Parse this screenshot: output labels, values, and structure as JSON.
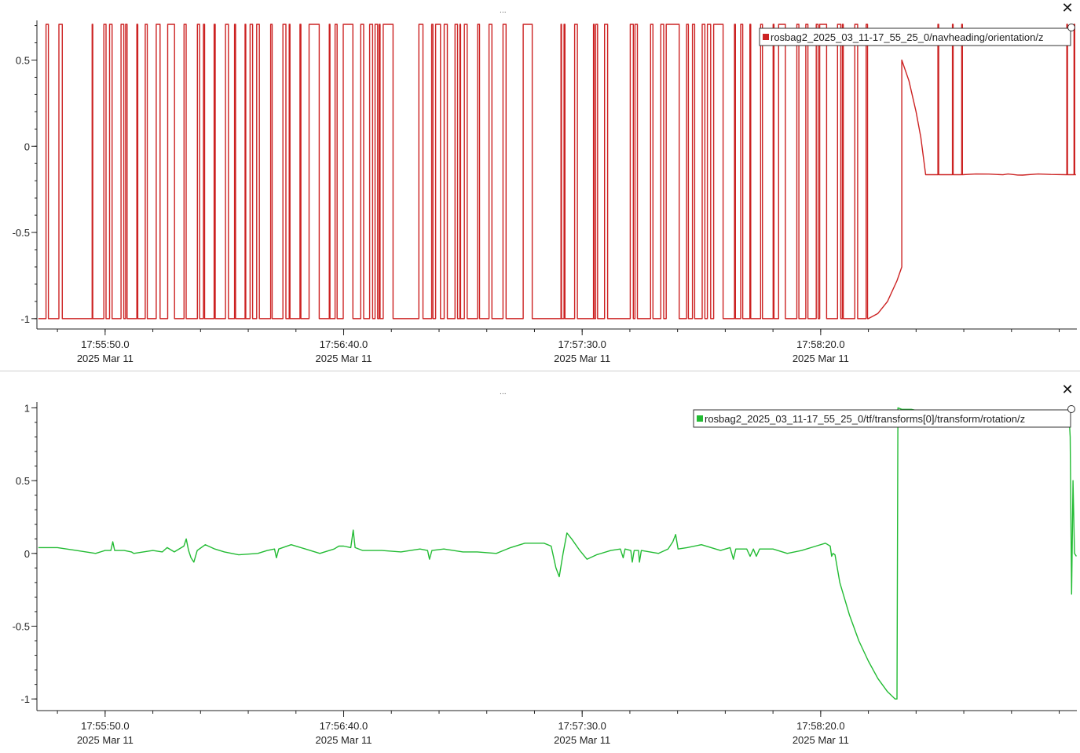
{
  "window": {
    "panel_menu_glyph": "...",
    "close_glyph": "✕",
    "close_icon": "close-icon"
  },
  "chart_data": [
    {
      "type": "line",
      "title": "",
      "xlabel": "",
      "ylabel": "",
      "x_ticks": [
        {
          "label": "17:55:50.0",
          "date": "2025 Mar 11",
          "t": 50
        },
        {
          "label": "17:56:40.0",
          "date": "2025 Mar 11",
          "t": 100
        },
        {
          "label": "17:57:30.0",
          "date": "2025 Mar 11",
          "t": 150
        },
        {
          "label": "17:58:20.0",
          "date": "2025 Mar 11",
          "t": 200
        }
      ],
      "xlim_seconds_after_17_55_00": [
        35.7,
        253.7
      ],
      "y_ticks": [
        0.5,
        0,
        -0.5,
        -1
      ],
      "ylim": [
        -1.06,
        0.73
      ],
      "grid": false,
      "legend_position": "top-right",
      "series": [
        {
          "name": "rosbag2_2025_03_11-17_55_25_0/navheading/orientation/z",
          "color": "#cc2222",
          "segments": [
            {
              "t_start": 36.0,
              "t_end": 210.0,
              "pattern": "square-switching",
              "high": 0.707,
              "low": -1.0
            },
            {
              "t_start": 210.0,
              "t_end": 217.0,
              "points": [
                [
                  210.0,
                  -1.0
                ],
                [
                  212.0,
                  -0.97
                ],
                [
                  214.0,
                  -0.9
                ],
                [
                  216.0,
                  -0.78
                ],
                [
                  217.0,
                  -0.7
                ]
              ]
            },
            {
              "t_start": 217.0,
              "t_end": 222.0,
              "points": [
                [
                  217.0,
                  0.5
                ],
                [
                  218.5,
                  0.38
                ],
                [
                  220.0,
                  0.2
                ],
                [
                  221.0,
                  0.05
                ]
              ]
            },
            {
              "t_start": 222.0,
              "t_end": 253.5,
              "pattern": "flat-with-spikes",
              "level": -0.165,
              "high": 0.707
            }
          ]
        }
      ]
    },
    {
      "type": "line",
      "title": "",
      "xlabel": "",
      "ylabel": "",
      "x_ticks": [
        {
          "label": "17:55:50.0",
          "date": "2025 Mar 11",
          "t": 50
        },
        {
          "label": "17:56:40.0",
          "date": "2025 Mar 11",
          "t": 100
        },
        {
          "label": "17:57:30.0",
          "date": "2025 Mar 11",
          "t": 150
        },
        {
          "label": "17:58:20.0",
          "date": "2025 Mar 11",
          "t": 200
        }
      ],
      "xlim_seconds_after_17_55_00": [
        35.7,
        253.7
      ],
      "y_ticks": [
        1,
        0.5,
        0,
        -0.5,
        -1
      ],
      "ylim": [
        -1.08,
        1.04
      ],
      "grid": false,
      "legend_position": "top-right",
      "series": [
        {
          "name": "rosbag2_2025_03_11-17_55_25_0/tf/transforms[0]/transform/rotation/z",
          "color": "#22bb33",
          "points": [
            [
              36.0,
              0.04
            ],
            [
              40.0,
              0.04
            ],
            [
              44.0,
              0.02
            ],
            [
              48.0,
              0.0
            ],
            [
              50.0,
              0.02
            ],
            [
              51.2,
              0.02
            ],
            [
              51.6,
              0.08
            ],
            [
              52.0,
              0.02
            ],
            [
              54.0,
              0.02
            ],
            [
              55.5,
              0.01
            ],
            [
              56.0,
              0.0
            ],
            [
              60.0,
              0.02
            ],
            [
              62.0,
              0.01
            ],
            [
              63.0,
              0.04
            ],
            [
              64.5,
              0.01
            ],
            [
              66.5,
              0.05
            ],
            [
              67.0,
              0.1
            ],
            [
              67.5,
              0.02
            ],
            [
              68.0,
              -0.03
            ],
            [
              68.6,
              -0.06
            ],
            [
              69.3,
              0.02
            ],
            [
              71.0,
              0.06
            ],
            [
              73.0,
              0.03
            ],
            [
              75.0,
              0.01
            ],
            [
              78.0,
              -0.01
            ],
            [
              82.0,
              0.0
            ],
            [
              84.0,
              0.02
            ],
            [
              85.5,
              0.03
            ],
            [
              85.9,
              -0.03
            ],
            [
              86.4,
              0.03
            ],
            [
              89.0,
              0.06
            ],
            [
              92.0,
              0.03
            ],
            [
              95.0,
              0.0
            ],
            [
              98.0,
              0.03
            ],
            [
              99.0,
              0.05
            ],
            [
              100.0,
              0.05
            ],
            [
              101.5,
              0.04
            ],
            [
              102.0,
              0.16
            ],
            [
              102.4,
              0.04
            ],
            [
              104.0,
              0.02
            ],
            [
              108.0,
              0.02
            ],
            [
              112.0,
              0.01
            ],
            [
              116.0,
              0.03
            ],
            [
              117.6,
              0.02
            ],
            [
              118.0,
              -0.04
            ],
            [
              118.5,
              0.02
            ],
            [
              121.0,
              0.03
            ],
            [
              125.0,
              0.01
            ],
            [
              128.0,
              0.01
            ],
            [
              132.0,
              0.0
            ],
            [
              135.0,
              0.04
            ],
            [
              138.0,
              0.07
            ],
            [
              142.0,
              0.07
            ],
            [
              143.5,
              0.05
            ],
            [
              144.5,
              -0.1
            ],
            [
              145.2,
              -0.16
            ],
            [
              146.0,
              0.0
            ],
            [
              146.8,
              0.14
            ],
            [
              147.8,
              0.1
            ],
            [
              149.5,
              0.02
            ],
            [
              151.0,
              -0.04
            ],
            [
              153.0,
              -0.01
            ],
            [
              156.0,
              0.02
            ],
            [
              158.0,
              0.03
            ],
            [
              158.6,
              -0.03
            ],
            [
              159.0,
              0.03
            ],
            [
              160.2,
              0.02
            ],
            [
              160.5,
              -0.06
            ],
            [
              160.9,
              0.02
            ],
            [
              161.8,
              0.02
            ],
            [
              162.0,
              -0.06
            ],
            [
              162.4,
              0.02
            ],
            [
              166.0,
              0.0
            ],
            [
              168.0,
              0.03
            ],
            [
              169.0,
              0.08
            ],
            [
              169.6,
              0.13
            ],
            [
              170.1,
              0.03
            ],
            [
              172.0,
              0.04
            ],
            [
              175.0,
              0.06
            ],
            [
              179.0,
              0.02
            ],
            [
              181.0,
              0.04
            ],
            [
              181.7,
              -0.04
            ],
            [
              182.2,
              0.03
            ],
            [
              184.5,
              0.03
            ],
            [
              185.2,
              -0.02
            ],
            [
              185.9,
              0.03
            ],
            [
              186.5,
              -0.02
            ],
            [
              187.2,
              0.03
            ],
            [
              190.0,
              0.03
            ],
            [
              193.0,
              0.0
            ],
            [
              196.0,
              0.02
            ],
            [
              199.0,
              0.05
            ],
            [
              201.0,
              0.07
            ],
            [
              202.0,
              0.05
            ],
            [
              202.3,
              -0.02
            ],
            [
              202.6,
              0.0
            ],
            [
              203.0,
              -0.01
            ],
            [
              204.0,
              -0.2
            ],
            [
              206.0,
              -0.42
            ],
            [
              208.0,
              -0.6
            ],
            [
              210.0,
              -0.74
            ],
            [
              212.0,
              -0.86
            ],
            [
              214.0,
              -0.95
            ],
            [
              215.6,
              -1.0
            ],
            [
              216.0,
              -1.0
            ],
            [
              216.2,
              1.0
            ],
            [
              217.0,
              0.99
            ],
            [
              219.0,
              0.99
            ],
            [
              222.0,
              0.97
            ],
            [
              226.0,
              0.98
            ],
            [
              230.0,
              0.98
            ],
            [
              235.0,
              0.98
            ],
            [
              240.0,
              0.98
            ],
            [
              245.0,
              0.98
            ],
            [
              249.0,
              0.98
            ],
            [
              252.0,
              0.98
            ],
            [
              252.3,
              0.8
            ],
            [
              252.6,
              -0.28
            ],
            [
              252.9,
              0.5
            ],
            [
              253.2,
              0.0
            ],
            [
              253.6,
              -0.02
            ]
          ]
        }
      ]
    }
  ]
}
